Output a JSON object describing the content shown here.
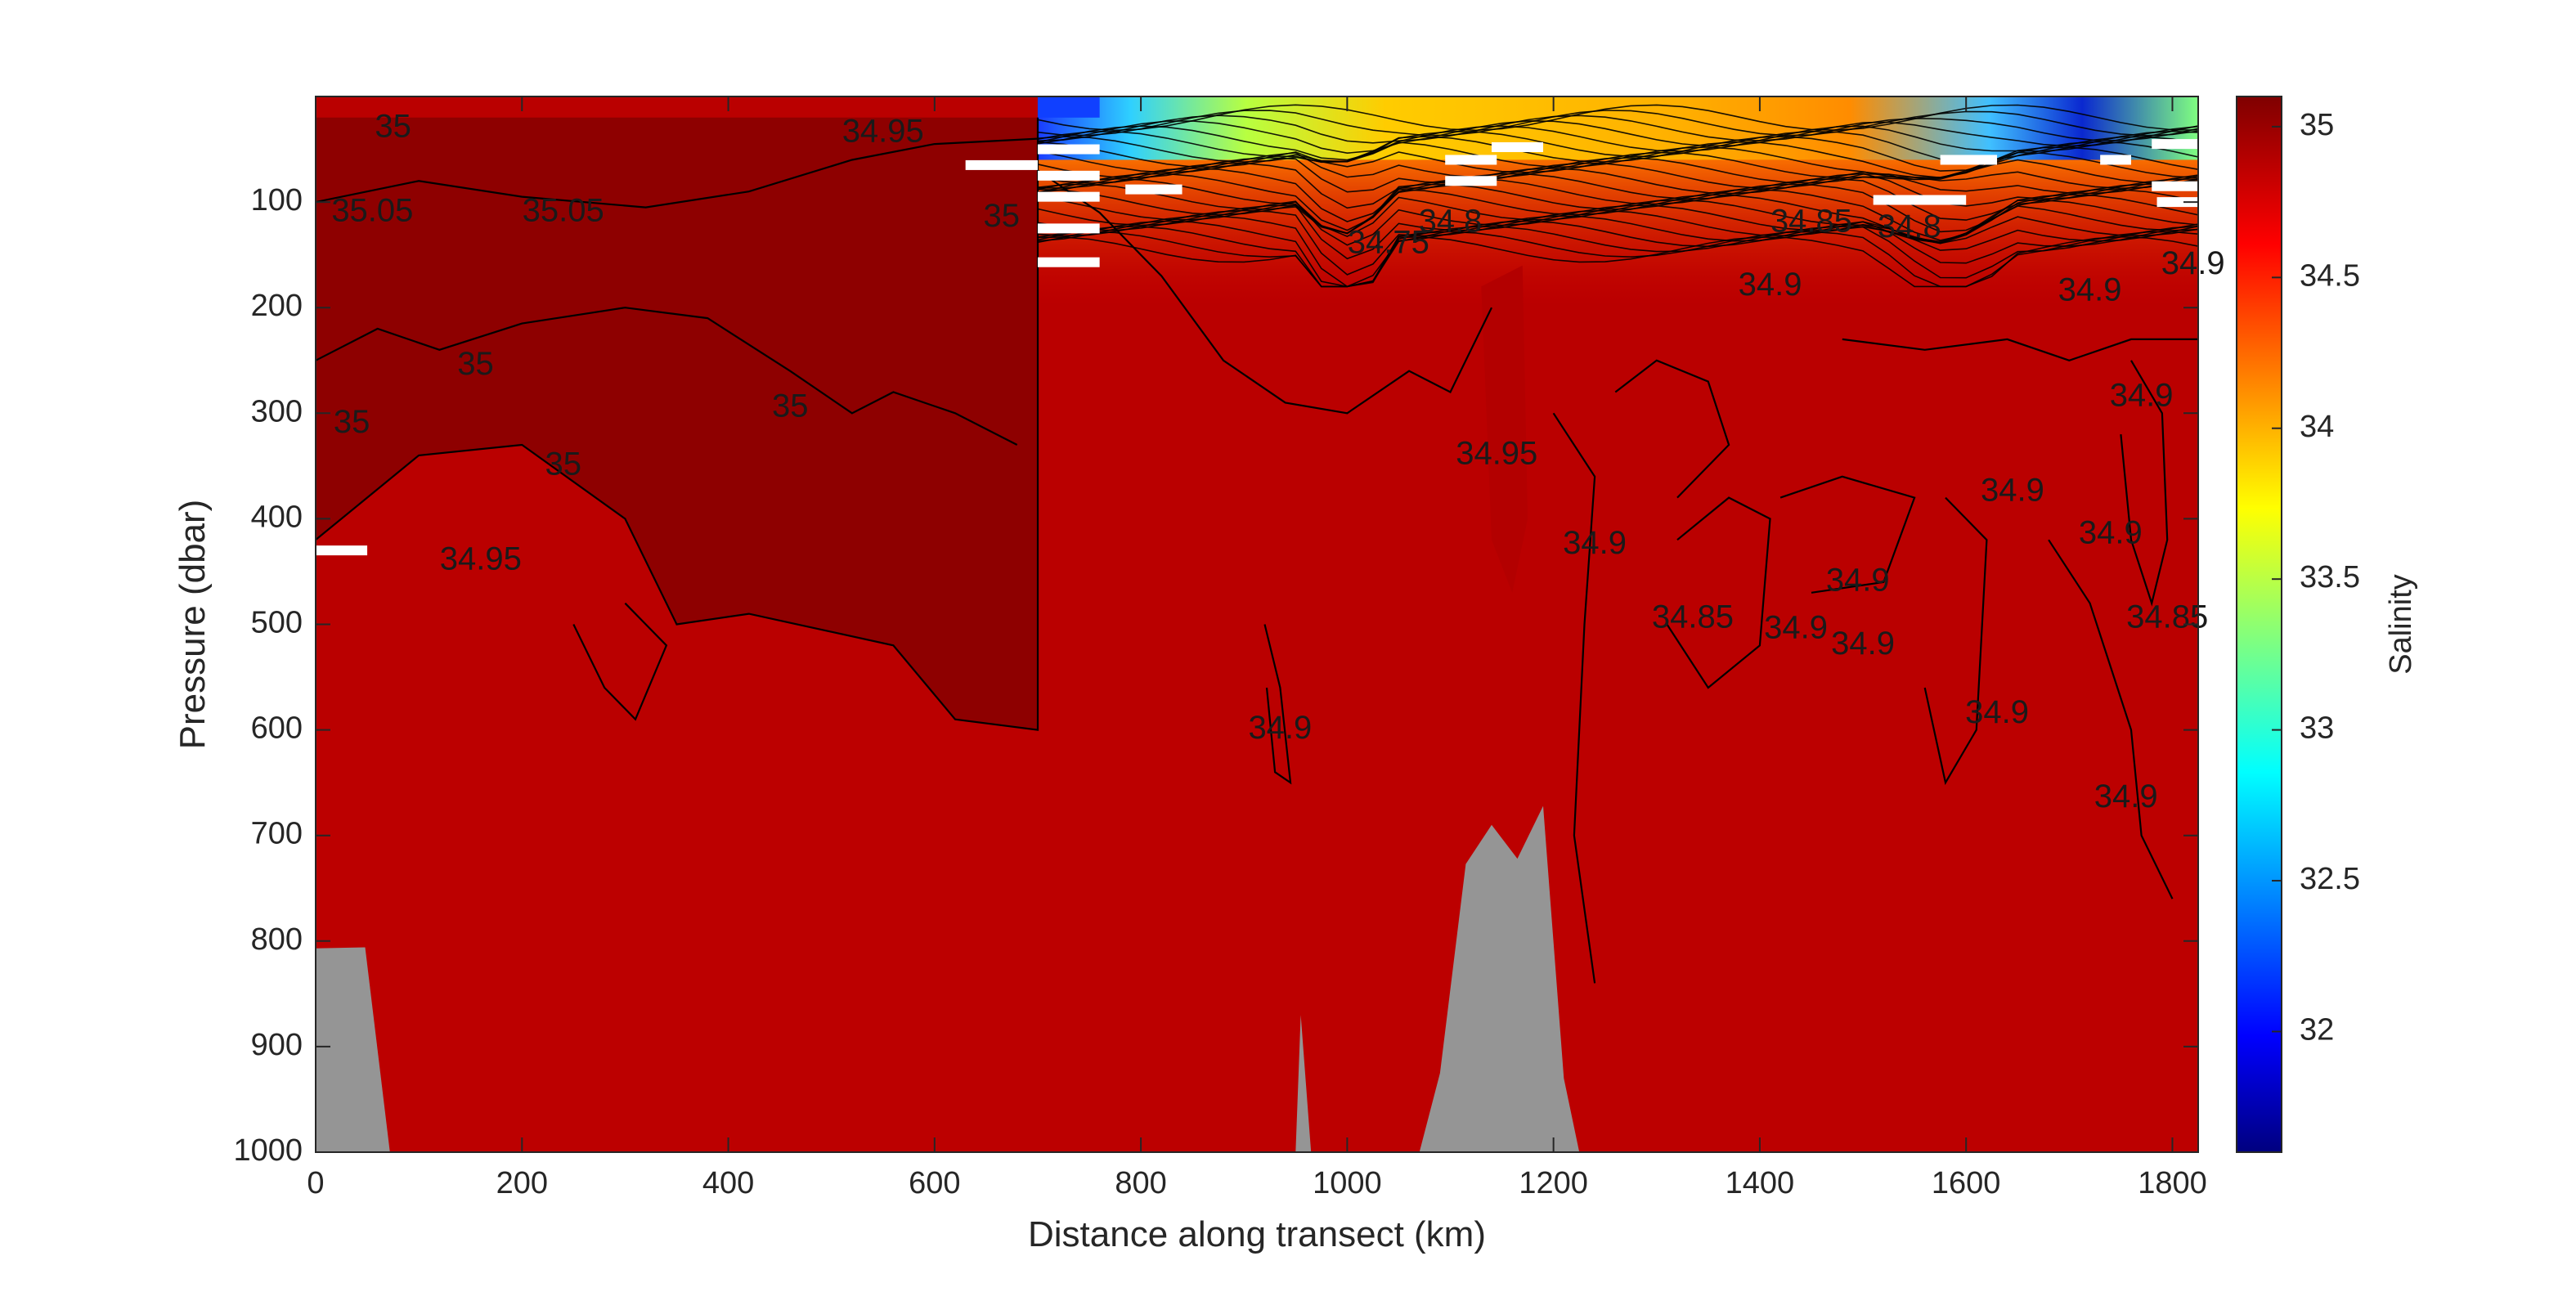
{
  "chart_data": {
    "type": "heatmap",
    "xlabel": "Distance along transect (km)",
    "ylabel": "Pressure (dbar)",
    "colorbar_label": "Salinity",
    "colormap": "jet",
    "xlim": [
      0,
      1825
    ],
    "ylim": [
      1000,
      0
    ],
    "y_reversed": true,
    "clim": [
      31.6,
      35.1
    ],
    "x_ticks": [
      "0",
      "200",
      "400",
      "600",
      "800",
      "1000",
      "1200",
      "1400",
      "1600",
      "1800"
    ],
    "y_ticks": [
      "100",
      "200",
      "300",
      "400",
      "500",
      "600",
      "700",
      "800",
      "900",
      "1000"
    ],
    "colorbar_ticks": [
      "32",
      "32.5",
      "33",
      "33.5",
      "34",
      "34.5",
      "35"
    ],
    "background_salinity": 34.9,
    "regions": [
      {
        "name": "high-salinity core west",
        "salinity": 35.05,
        "outline_km_dbar": [
          [
            0,
            20
          ],
          [
            700,
            20
          ],
          [
            700,
            600
          ],
          [
            620,
            590
          ],
          [
            560,
            520
          ],
          [
            420,
            490
          ],
          [
            350,
            500
          ],
          [
            300,
            400
          ],
          [
            200,
            330
          ],
          [
            100,
            340
          ],
          [
            0,
            420
          ]
        ]
      },
      {
        "name": "fresh surface layer",
        "salinity": 34.0,
        "x_range_km": [
          700,
          1825
        ],
        "base_dbar": 60
      }
    ],
    "contour_labels": [
      {
        "text": "35",
        "x": 75,
        "y": 30
      },
      {
        "text": "35.05",
        "x": 55,
        "y": 110
      },
      {
        "text": "35.05",
        "x": 240,
        "y": 110
      },
      {
        "text": "35",
        "x": 155,
        "y": 255
      },
      {
        "text": "35",
        "x": 35,
        "y": 310
      },
      {
        "text": "35",
        "x": 240,
        "y": 350
      },
      {
        "text": "35",
        "x": 460,
        "y": 295
      },
      {
        "text": "34.95",
        "x": 160,
        "y": 440
      },
      {
        "text": "34.95",
        "x": 550,
        "y": 35
      },
      {
        "text": "35",
        "x": 665,
        "y": 115
      },
      {
        "text": "34.75",
        "x": 1040,
        "y": 140
      },
      {
        "text": "34.8",
        "x": 1100,
        "y": 120
      },
      {
        "text": "34.95",
        "x": 1145,
        "y": 340
      },
      {
        "text": "34.9",
        "x": 1240,
        "y": 425
      },
      {
        "text": "34.9",
        "x": 935,
        "y": 600
      },
      {
        "text": "34.85",
        "x": 1335,
        "y": 495
      },
      {
        "text": "34.9",
        "x": 1435,
        "y": 505
      },
      {
        "text": "34.9",
        "x": 1495,
        "y": 460
      },
      {
        "text": "34.9",
        "x": 1500,
        "y": 520
      },
      {
        "text": "34.85",
        "x": 1450,
        "y": 120
      },
      {
        "text": "34.8",
        "x": 1545,
        "y": 125
      },
      {
        "text": "34.9",
        "x": 1410,
        "y": 180
      },
      {
        "text": "34.9",
        "x": 1645,
        "y": 375
      },
      {
        "text": "34.9",
        "x": 1630,
        "y": 585
      },
      {
        "text": "34.9",
        "x": 1770,
        "y": 285
      },
      {
        "text": "34.9",
        "x": 1740,
        "y": 415
      },
      {
        "text": "34.85",
        "x": 1795,
        "y": 495
      },
      {
        "text": "34.9",
        "x": 1755,
        "y": 665
      },
      {
        "text": "34.9",
        "x": 1820,
        "y": 160
      },
      {
        "text": "34.9",
        "x": 1720,
        "y": 185
      }
    ],
    "bathymetry_masks": [
      [
        [
          0,
          807
        ],
        [
          48,
          806
        ],
        [
          72,
          1000
        ],
        [
          0,
          1000
        ]
      ],
      [
        [
          955,
          870
        ],
        [
          965,
          1000
        ],
        [
          950,
          1000
        ]
      ],
      [
        [
          1070,
          1000
        ],
        [
          1090,
          925
        ],
        [
          1115,
          727
        ],
        [
          1140,
          690
        ],
        [
          1165,
          722
        ],
        [
          1190,
          672
        ],
        [
          1210,
          930
        ],
        [
          1225,
          1000
        ]
      ]
    ],
    "data_gaps": [
      {
        "x0": 0,
        "x1": 50,
        "y": 430
      },
      {
        "x0": 630,
        "x1": 700,
        "y": 65
      },
      {
        "x0": 700,
        "x1": 760,
        "y": 50
      },
      {
        "x0": 700,
        "x1": 760,
        "y": 75
      },
      {
        "x0": 700,
        "x1": 760,
        "y": 95
      },
      {
        "x0": 700,
        "x1": 760,
        "y": 125
      },
      {
        "x0": 700,
        "x1": 760,
        "y": 157
      },
      {
        "x0": 785,
        "x1": 840,
        "y": 88
      },
      {
        "x0": 1095,
        "x1": 1145,
        "y": 60
      },
      {
        "x0": 1095,
        "x1": 1145,
        "y": 80
      },
      {
        "x0": 1140,
        "x1": 1190,
        "y": 48
      },
      {
        "x0": 1510,
        "x1": 1600,
        "y": 98
      },
      {
        "x0": 1575,
        "x1": 1630,
        "y": 60
      },
      {
        "x0": 1730,
        "x1": 1760,
        "y": 60
      },
      {
        "x0": 1780,
        "x1": 1825,
        "y": 85
      },
      {
        "x0": 1785,
        "x1": 1825,
        "y": 100
      },
      {
        "x0": 1780,
        "x1": 1825,
        "y": 45
      }
    ]
  }
}
